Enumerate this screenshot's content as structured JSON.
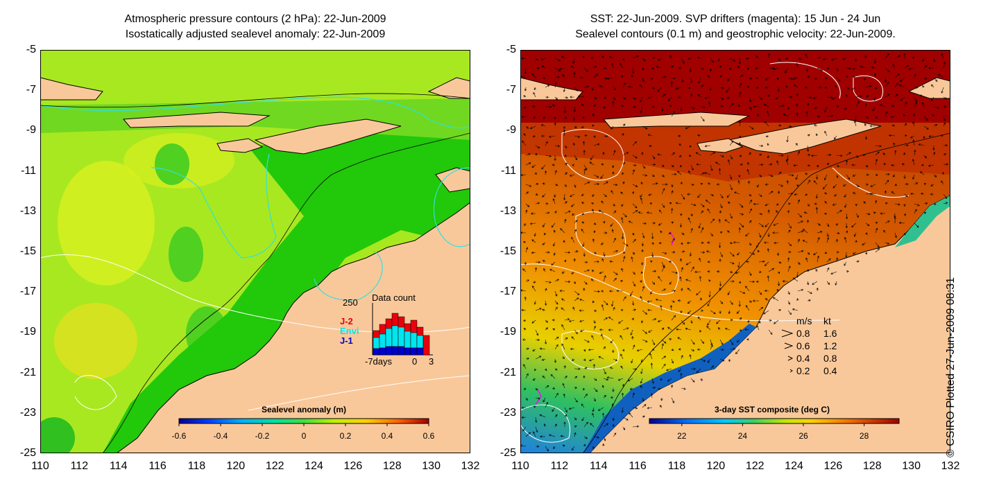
{
  "left_panel": {
    "title_line1": "Atmospheric pressure contours (2 hPa): 22-Jun-2009",
    "title_line2": "Isostatically adjusted sealevel anomaly: 22-Jun-2009",
    "colorbar": {
      "label": "Sealevel anomaly (m)",
      "ticks": [
        "-0.6",
        "-0.4",
        "-0.2",
        "0",
        "0.2",
        "0.4",
        "0.6"
      ]
    },
    "inset": {
      "title": "Data count",
      "ymax_label": "250",
      "x_left_label": "-7days",
      "x_mid_label": "0",
      "x_right_label": "3",
      "legend": [
        {
          "label": "J-2",
          "color": "#e8000b"
        },
        {
          "label": "Envi",
          "color": "#00e5ee"
        },
        {
          "label": "J-1",
          "color": "#0000cd"
        }
      ]
    }
  },
  "right_panel": {
    "title_line1": "SST: 22-Jun-2009. SVP drifters (magenta): 15 Jun - 24 Jun",
    "title_line2": "Sealevel contours (0.1 m) and geostrophic velocity: 22-Jun-2009.",
    "colorbar": {
      "label": "3-day SST composite (deg C)",
      "ticks": [
        "22",
        "24",
        "26",
        "28"
      ]
    },
    "velocity_legend": {
      "header_ms": "m/s",
      "header_kt": "kt",
      "rows": [
        {
          "ms": "0.8",
          "kt": "1.6"
        },
        {
          "ms": "0.6",
          "kt": "1.2"
        },
        {
          "ms": "0.4",
          "kt": "0.8"
        },
        {
          "ms": "0.2",
          "kt": "0.4"
        }
      ]
    }
  },
  "axes": {
    "y_ticks": [
      "-5",
      "-7",
      "-9",
      "-11",
      "-13",
      "-15",
      "-17",
      "-19",
      "-21",
      "-23",
      "-25"
    ],
    "x_ticks": [
      "110",
      "112",
      "114",
      "116",
      "118",
      "120",
      "122",
      "124",
      "126",
      "128",
      "130",
      "132"
    ]
  },
  "credit": "© CSIRO Plotted 27-Jun-2009 08:31",
  "colors": {
    "land": "#f9c89a",
    "sla_shelf": "#22c80a",
    "sla_ocean": "#a8e820",
    "sst_warm": "#d45a00",
    "sst_north": "#a00000",
    "sst_cool": "#3fc040",
    "contour": "#000000",
    "cyan_contour": "#30e0e0"
  }
}
